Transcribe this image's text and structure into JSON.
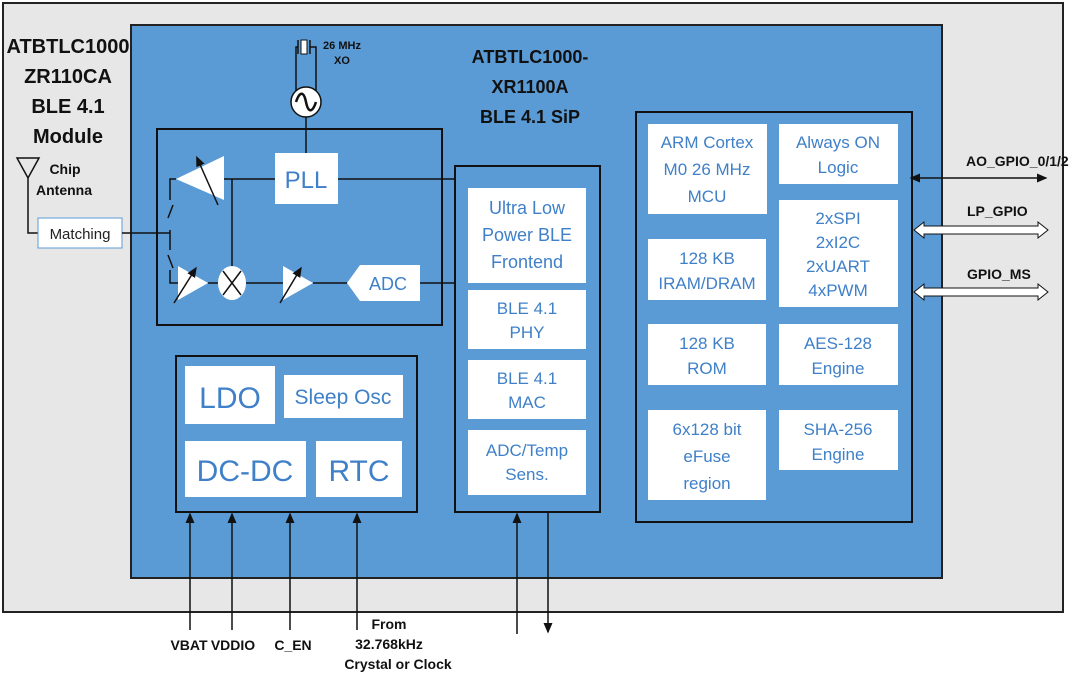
{
  "colors": {
    "module_bg": "#e7e7e7",
    "sip_bg": "#5b9bd5",
    "block_text": "#3f80c8",
    "block_fill": "#ffffff"
  },
  "module": {
    "title": [
      "ATBTLC1000",
      "ZR110CA",
      "BLE 4.1",
      "Module"
    ],
    "antenna": [
      "Chip",
      "Antenna"
    ],
    "matching": "Matching"
  },
  "sip": {
    "title": [
      "ATBTLC1000-",
      "XR1100A",
      "BLE 4.1 SiP"
    ],
    "xo": [
      "26 MHz",
      "XO"
    ]
  },
  "rf": {
    "pll": "PLL",
    "adc": "ADC"
  },
  "power": {
    "ldo": "LDO",
    "sleep_osc": "Sleep Osc",
    "dcdc": "DC-DC",
    "rtc": "RTC"
  },
  "ble": [
    [
      "Ultra Low",
      "Power BLE",
      "Frontend"
    ],
    [
      "BLE 4.1",
      "PHY"
    ],
    [
      "BLE 4.1",
      "MAC"
    ],
    [
      "ADC/Temp",
      "Sens."
    ]
  ],
  "mcu": {
    "arm": [
      "ARM Cortex",
      "M0 26 MHz",
      "MCU"
    ],
    "aon": [
      "Always ON",
      "Logic"
    ],
    "ram": [
      "128 KB",
      "IRAM/DRAM"
    ],
    "periph": [
      "2xSPI",
      "2xI2C",
      "2xUART",
      "4xPWM"
    ],
    "rom": [
      "128 KB",
      "ROM"
    ],
    "aes": [
      "AES-128",
      "Engine"
    ],
    "efuse": [
      "6x128 bit",
      "eFuse",
      "region"
    ],
    "sha": [
      "SHA-256",
      "Engine"
    ]
  },
  "signals": {
    "ao_gpio": "AO_GPIO_0/1/2",
    "lp_gpio": "LP_GPIO",
    "gpio_ms": "GPIO_MS"
  },
  "pins": {
    "vbat": "VBAT",
    "vddio": "VDDIO",
    "c_en": "C_EN",
    "clock": [
      "From",
      "32.768kHz",
      "Crystal or Clock"
    ]
  }
}
